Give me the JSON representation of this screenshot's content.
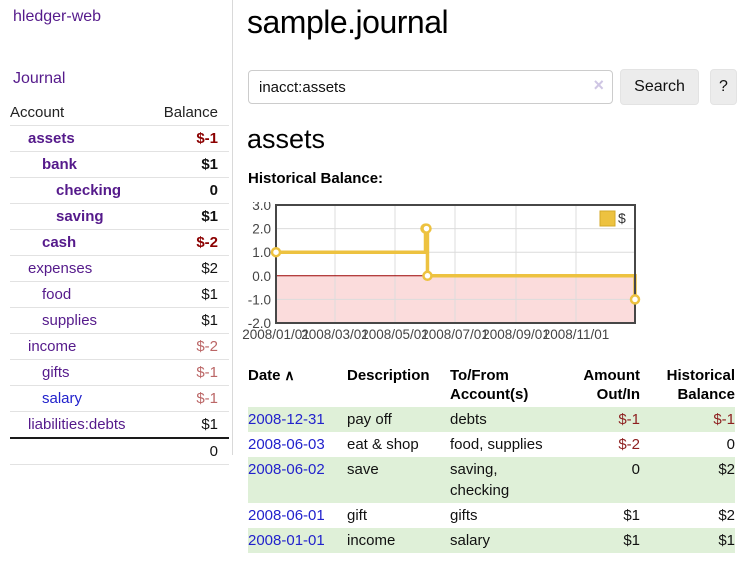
{
  "app": {
    "title": "hledger-web",
    "nav_journal": "Journal"
  },
  "sidebar": {
    "headers": {
      "account": "Account",
      "balance": "Balance"
    },
    "accounts": [
      {
        "name": "assets",
        "balance": "$-1",
        "depth": 0,
        "bold": true,
        "neg": true
      },
      {
        "name": "bank",
        "balance": "$1",
        "depth": 1,
        "bold": true,
        "neg": false
      },
      {
        "name": "checking",
        "balance": "0",
        "depth": 2,
        "bold": true,
        "neg": false
      },
      {
        "name": "saving",
        "balance": "$1",
        "depth": 2,
        "bold": true,
        "neg": false
      },
      {
        "name": "cash",
        "balance": "$-2",
        "depth": 1,
        "bold": true,
        "neg": true
      },
      {
        "name": "expenses",
        "balance": "$2",
        "depth": 0,
        "bold": false,
        "neg": false
      },
      {
        "name": "food",
        "balance": "$1",
        "depth": 1,
        "bold": false,
        "neg": false
      },
      {
        "name": "supplies",
        "balance": "$1",
        "depth": 1,
        "bold": false,
        "neg": false
      },
      {
        "name": "income",
        "balance": "$-2",
        "depth": 0,
        "bold": false,
        "neg": true
      },
      {
        "name": "gifts",
        "balance": "$-1",
        "depth": 1,
        "bold": false,
        "neg": true
      },
      {
        "name": "salary",
        "balance": "$-1",
        "depth": 1,
        "bold": false,
        "neg": true,
        "link_style": "blue"
      },
      {
        "name": "liabilities:debts",
        "balance": "$1",
        "depth": 0,
        "bold": false,
        "neg": false
      }
    ],
    "total": "0"
  },
  "header": {
    "title": "sample.journal"
  },
  "search": {
    "query": "inacct:assets",
    "clear_icon": "×",
    "button_label": "Search",
    "help_label": "?"
  },
  "account_page": {
    "heading": "assets",
    "chart_label": "Historical Balance:"
  },
  "chart_data": {
    "type": "line",
    "style": "step",
    "title": "Historical Balance",
    "series": [
      {
        "name": "$",
        "color": "#edc240",
        "points": [
          [
            "2008-01-01",
            1
          ],
          [
            "2008-06-01",
            2
          ],
          [
            "2008-06-02",
            2
          ],
          [
            "2008-06-03",
            0
          ],
          [
            "2008-12-31",
            -1
          ]
        ]
      }
    ],
    "y_ticks": [
      "3.0",
      "2.0",
      "1.0",
      "0.0",
      "-1.0",
      "-2.0"
    ],
    "y_tick_values": [
      3,
      2,
      1,
      0,
      -1,
      -2
    ],
    "x_ticks": [
      "2008/01/01",
      "2008/03/01",
      "2008/05/01",
      "2008/07/01",
      "2008/09/01",
      "2008/11/01"
    ],
    "ylim": [
      -2,
      3
    ],
    "xlim": [
      "2008-01-01",
      "2008-12-31"
    ],
    "legend": {
      "label": "$",
      "position": "top-right",
      "swatch_color": "#edc240",
      "swatch_border": "#d4a928"
    },
    "colors": {
      "negative_region": "#fbdcdc",
      "zero_line": "#9b0000",
      "grid": "#dcdcdc",
      "border": "#474747",
      "tick_text": "#444444",
      "marker_fill": "#ffffff"
    }
  },
  "register": {
    "headers": [
      "Date",
      "Description",
      "To/From Account(s)",
      "Amount Out/In",
      "Historical Balance"
    ],
    "sort_icon": "∧",
    "rows": [
      {
        "date": "2008-12-31",
        "description": "pay off",
        "accounts": "debts",
        "amount": "$-1",
        "balance": "$-1"
      },
      {
        "date": "2008-06-03",
        "description": "eat & shop",
        "accounts": "food, supplies",
        "amount": "$-2",
        "balance": "0"
      },
      {
        "date": "2008-06-02",
        "description": "save",
        "accounts": "saving, checking",
        "amount": "0",
        "balance": "$2"
      },
      {
        "date": "2008-06-01",
        "description": "gift",
        "accounts": "gifts",
        "amount": "$1",
        "balance": "$2"
      },
      {
        "date": "2008-01-01",
        "description": "income",
        "accounts": "salary",
        "amount": "$1",
        "balance": "$1"
      }
    ]
  }
}
